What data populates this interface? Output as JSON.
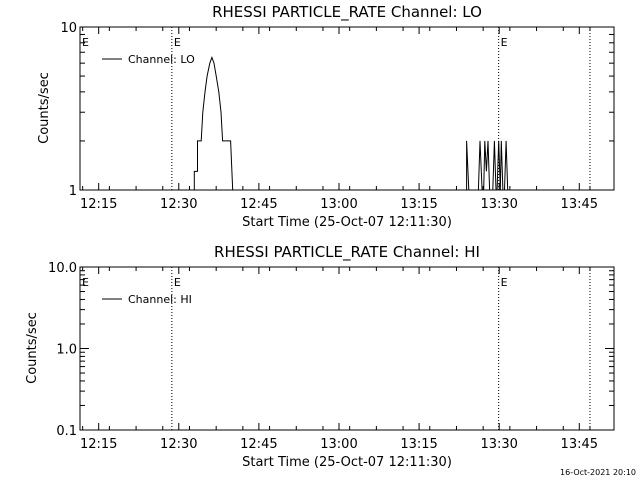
{
  "stamp": "16-Oct-2021 20:10",
  "chart_data": [
    {
      "type": "line",
      "title": "RHESSI PARTICLE_RATE Channel: LO",
      "xlabel": "Start Time (25-Oct-07 12:11:30)",
      "ylabel": "Counts/sec",
      "x_unit": "minutes after 12:11:30",
      "xlim": [
        0,
        100
      ],
      "y_scale": "log",
      "ylim": [
        1,
        10
      ],
      "y_ticks": [
        {
          "value": 1,
          "label": "1"
        },
        {
          "value": 10,
          "label": "10"
        }
      ],
      "x_ticks": [
        {
          "value": 3.5,
          "label": "12:15"
        },
        {
          "value": 18.5,
          "label": "12:30"
        },
        {
          "value": 33.5,
          "label": "12:45"
        },
        {
          "value": 48.5,
          "label": "13:00"
        },
        {
          "value": 63.5,
          "label": "13:15"
        },
        {
          "value": 78.5,
          "label": "13:30"
        },
        {
          "value": 93.5,
          "label": "13:45"
        }
      ],
      "legend": {
        "label": "Channel: LO",
        "position": "top-left"
      },
      "markers": [
        {
          "x": 17.2,
          "label": "E"
        },
        {
          "x": 78.4,
          "label": "E"
        },
        {
          "x": 95.5,
          "label": ""
        }
      ],
      "series": [
        {
          "segments": [
            [
              [
                20.6,
                1
              ],
              [
                21.4,
                1
              ],
              [
                21.4,
                1.3
              ],
              [
                22.0,
                1.3
              ],
              [
                22.0,
                2
              ],
              [
                22.7,
                2
              ],
              [
                23.0,
                3
              ],
              [
                23.4,
                4
              ],
              [
                23.8,
                5
              ],
              [
                24.3,
                6
              ],
              [
                24.7,
                6.5
              ],
              [
                25.1,
                6
              ],
              [
                25.5,
                5
              ],
              [
                26.0,
                4
              ],
              [
                26.4,
                3
              ],
              [
                26.7,
                2
              ],
              [
                28.2,
                2
              ],
              [
                28.6,
                1
              ]
            ],
            [
              [
                72.4,
                1
              ],
              [
                72.4,
                2
              ],
              [
                72.8,
                1
              ]
            ],
            [
              [
                74.6,
                1
              ],
              [
                74.9,
                2
              ],
              [
                75.3,
                1
              ]
            ],
            [
              [
                75.6,
                1
              ],
              [
                75.8,
                2
              ],
              [
                76.1,
                1.3
              ],
              [
                76.4,
                2
              ],
              [
                76.7,
                1
              ]
            ],
            [
              [
                77.3,
                1
              ],
              [
                77.6,
                2
              ],
              [
                77.9,
                1
              ]
            ],
            [
              [
                78.1,
                1
              ],
              [
                78.4,
                2
              ],
              [
                78.7,
                1
              ],
              [
                78.9,
                2
              ],
              [
                79.2,
                1
              ]
            ],
            [
              [
                79.5,
                1
              ],
              [
                79.8,
                2
              ],
              [
                80.1,
                1
              ]
            ]
          ]
        }
      ]
    },
    {
      "type": "line",
      "title": "RHESSI PARTICLE_RATE Channel: HI",
      "xlabel": "Start Time (25-Oct-07 12:11:30)",
      "ylabel": "Counts/sec",
      "x_unit": "minutes after 12:11:30",
      "xlim": [
        0,
        100
      ],
      "y_scale": "log",
      "ylim": [
        0.1,
        10
      ],
      "y_ticks": [
        {
          "value": 0.1,
          "label": "0.1"
        },
        {
          "value": 1,
          "label": "1.0"
        },
        {
          "value": 10,
          "label": "10.0"
        }
      ],
      "x_ticks": [
        {
          "value": 3.5,
          "label": "12:15"
        },
        {
          "value": 18.5,
          "label": "12:30"
        },
        {
          "value": 33.5,
          "label": "12:45"
        },
        {
          "value": 48.5,
          "label": "13:00"
        },
        {
          "value": 63.5,
          "label": "13:15"
        },
        {
          "value": 78.5,
          "label": "13:30"
        },
        {
          "value": 93.5,
          "label": "13:45"
        }
      ],
      "legend": {
        "label": "Channel: HI",
        "position": "top-left"
      },
      "markers": [
        {
          "x": 17.2,
          "label": "E"
        },
        {
          "x": 78.4,
          "label": "E"
        },
        {
          "x": 95.5,
          "label": ""
        }
      ],
      "series": [
        {
          "segments": []
        }
      ]
    }
  ]
}
